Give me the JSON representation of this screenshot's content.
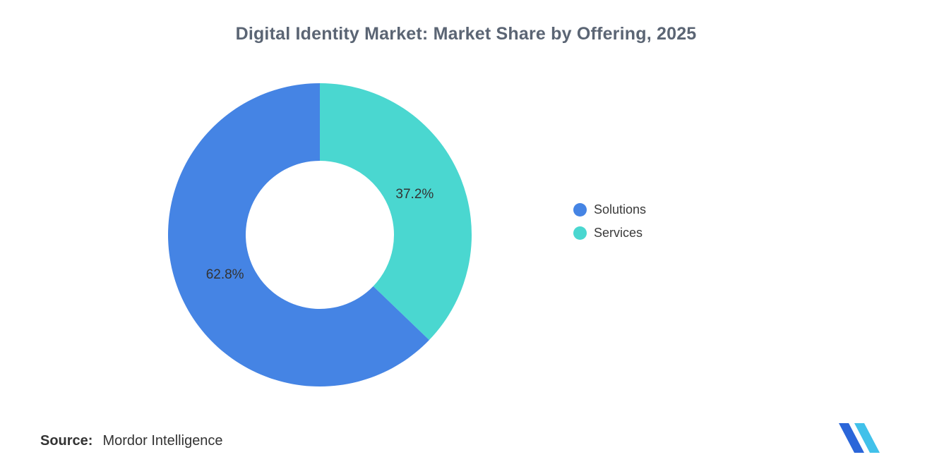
{
  "title": "Digital Identity Market: Market Share by Offering, 2025",
  "legend": {
    "items": [
      {
        "label": "Solutions",
        "color": "#4584E4"
      },
      {
        "label": "Services",
        "color": "#4AD7D0"
      }
    ]
  },
  "source": {
    "label": "Source:",
    "value": "Mordor Intelligence"
  },
  "logo": {
    "name": "mordor-intelligence-logo",
    "color_dark": "#2B66D9",
    "color_light": "#41C1EA"
  },
  "chart_data": {
    "type": "pie",
    "subtype": "donut",
    "title": "Digital Identity Market: Market Share by Offering, 2025",
    "categories": [
      "Solutions",
      "Services"
    ],
    "values": [
      62.8,
      37.2
    ],
    "labels": [
      "62.8%",
      "37.2%"
    ],
    "colors": [
      "#4584E4",
      "#4AD7D0"
    ],
    "unit": "%",
    "start_angle_deg": -90,
    "clockwise_order": [
      "Services",
      "Solutions"
    ],
    "inner_radius_ratio": 0.49,
    "legend_position": "right",
    "grid": false
  }
}
